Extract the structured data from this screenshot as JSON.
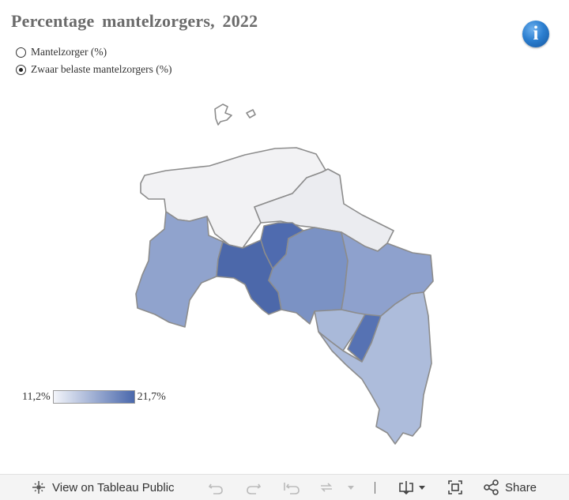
{
  "title": "Percentage  mantelzorgers,  2022",
  "info_icon": "info-icon",
  "radio_options": [
    {
      "label": "Mantelzorger (%)",
      "checked": false
    },
    {
      "label": "Zwaar belaste mantelzorgers (%)",
      "checked": true
    }
  ],
  "legend": {
    "min": "11,2%",
    "max": "21,7%",
    "color_low": "#f3f5fa",
    "color_high": "#4a68ac"
  },
  "map": {
    "region_colors": {
      "north_coast": "#f2f2f4",
      "northeast": "#ebecf0",
      "west": "#90a3cd",
      "center_west": "#4c68aa",
      "north_center": "#4f6baf",
      "center": "#7b92c4",
      "east": "#8ea1cd",
      "south_west": "#a9b9d9",
      "south_center": "#5672b3",
      "south": "#adbcdb",
      "islands": "#ffffff"
    },
    "border_color": "#8c8c8c"
  },
  "toolbar": {
    "view_on_tableau": "View on Tableau Public",
    "share": "Share",
    "icons": [
      "tableau-logo-icon",
      "undo-icon",
      "redo-icon",
      "revert-icon",
      "refresh-icon",
      "pause-dropdown-icon",
      "download-icon",
      "fullscreen-icon",
      "share-icon"
    ]
  }
}
